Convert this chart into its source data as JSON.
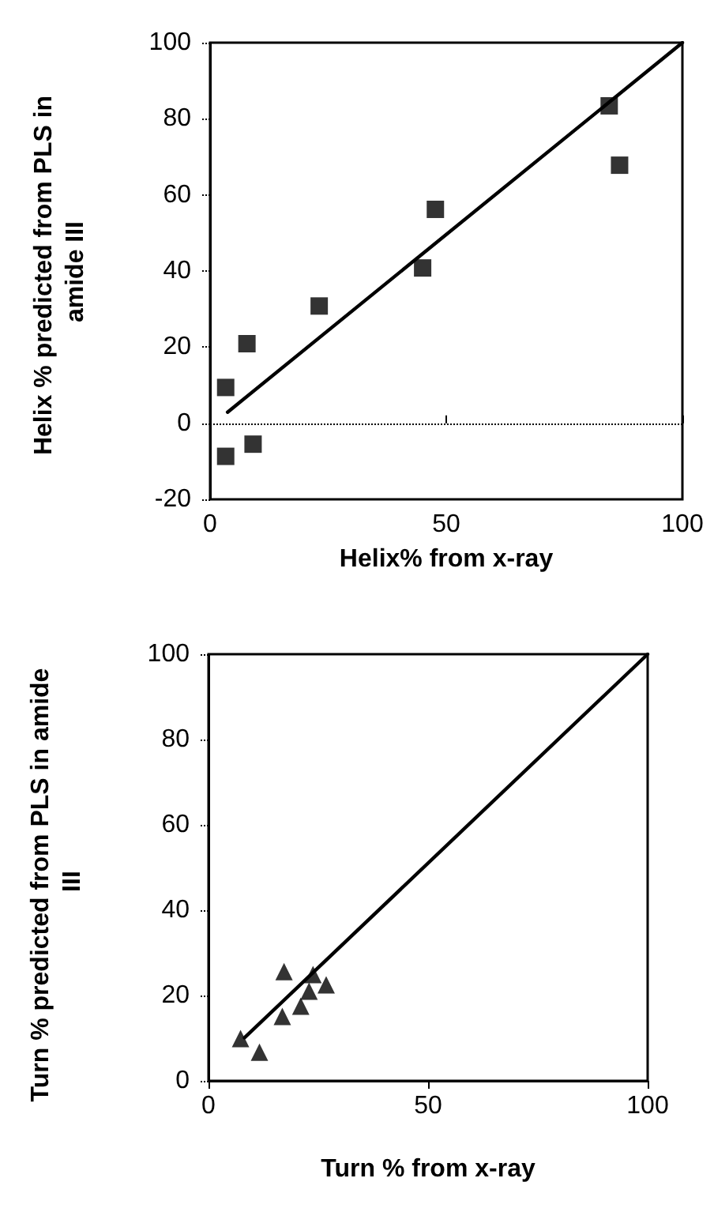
{
  "chart_data": [
    {
      "type": "scatter",
      "xlabel": "Helix% from x-ray",
      "ylabel": "Helix % predicted from PLS in amide III",
      "xlim": [
        0,
        100
      ],
      "ylim": [
        -20,
        100
      ],
      "xticks": [
        0,
        50,
        100
      ],
      "yticks": [
        -20,
        0,
        20,
        40,
        60,
        80,
        100
      ],
      "ref_lines": [
        {
          "axis": "y",
          "value": 0,
          "line_style": "dotted",
          "color": "#000000"
        }
      ],
      "series": [
        {
          "marker": "square",
          "color": "#000000",
          "x": [
            3.3,
            7.8,
            23.1,
            45,
            47.7,
            84.5,
            86.7,
            3.3,
            9.1
          ],
          "values": [
            9.4,
            20.9,
            30.8,
            40.8,
            56.2,
            83.4,
            67.8,
            -8.7,
            -5.5
          ]
        },
        {
          "type": "line",
          "marker": "none",
          "color": "#000000",
          "x": [
            3.7,
            100
          ],
          "values": [
            2.9,
            100
          ]
        }
      ]
    },
    {
      "type": "scatter",
      "xlabel": "Turn % from x-ray",
      "ylabel": "Turn % predicted from PLS in amide III",
      "xlim": [
        0,
        100
      ],
      "ylim": [
        0,
        100
      ],
      "xticks": [
        0,
        50,
        100
      ],
      "yticks": [
        0,
        20,
        40,
        60,
        80,
        100
      ],
      "series": [
        {
          "marker": "triangle",
          "color": "#000000",
          "x": [
            7.3,
            11.6,
            17.2,
            16.8,
            21,
            23.8,
            22.9,
            26.8
          ],
          "values": [
            9.9,
            6.7,
            25.6,
            15.1,
            17.5,
            24.9,
            21,
            22.5
          ]
        },
        {
          "type": "line",
          "marker": "none",
          "color": "#000000",
          "x": [
            8.2,
            100
          ],
          "values": [
            10.1,
            100
          ]
        }
      ]
    }
  ]
}
